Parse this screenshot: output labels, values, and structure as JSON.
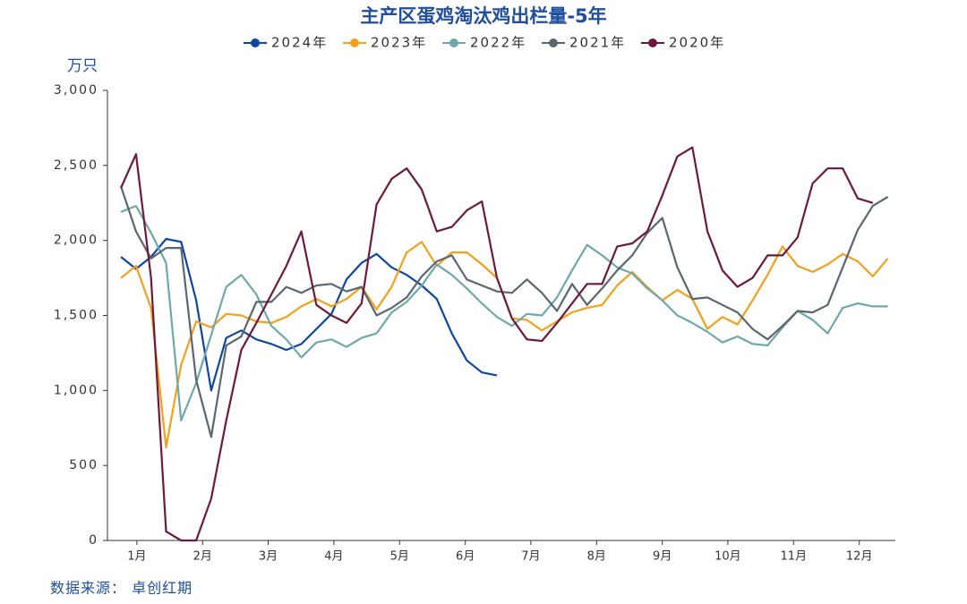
{
  "chart_data": {
    "type": "line",
    "title": "主产区蛋鸡淘汰鸡出栏量-5年",
    "y_label": "万只",
    "source": "数据来源： 卓创红期",
    "x": [
      1,
      2,
      3,
      4,
      5,
      6,
      7,
      8,
      9,
      10,
      11,
      12,
      13,
      14,
      15,
      16,
      17,
      18,
      19,
      20,
      21,
      22,
      23,
      24,
      25,
      26,
      27,
      28,
      29,
      30,
      31,
      32,
      33,
      34,
      35,
      36,
      37,
      38,
      39,
      40,
      41,
      42,
      43,
      44,
      45,
      46,
      47,
      48,
      49,
      50,
      51,
      52
    ],
    "xlim": [
      0.1,
      52.5
    ],
    "xticks": [
      {
        "value": 2.06,
        "label": "1月"
      },
      {
        "value": 6.43,
        "label": "2月"
      },
      {
        "value": 10.79,
        "label": "3月"
      },
      {
        "value": 15.16,
        "label": "4月"
      },
      {
        "value": 19.53,
        "label": "5月"
      },
      {
        "value": 23.9,
        "label": "6月"
      },
      {
        "value": 28.26,
        "label": "7月"
      },
      {
        "value": 32.63,
        "label": "8月"
      },
      {
        "value": 37,
        "label": "9月"
      },
      {
        "value": 41.36,
        "label": "10月"
      },
      {
        "value": 45.73,
        "label": "11月"
      },
      {
        "value": 50.1,
        "label": "12月"
      }
    ],
    "ylim": [
      0,
      3000
    ],
    "yticks": [
      0,
      500,
      {
        "value": 1000,
        "label": "1,000"
      },
      {
        "value": 1500,
        "label": "1,500"
      },
      {
        "value": 2000,
        "label": "2,000"
      },
      {
        "value": 2500,
        "label": "2,500"
      },
      {
        "value": 3000,
        "label": "3,000"
      }
    ],
    "series": [
      {
        "name": "2024年",
        "color": "#0d47a1",
        "values": [
          1890,
          1810,
          1890,
          2010,
          1990,
          1600,
          1000,
          1350,
          1400,
          1340,
          1310,
          1270,
          1310,
          1410,
          1510,
          1740,
          1850,
          1910,
          1820,
          1770,
          1700,
          1610,
          1380,
          1200,
          1120,
          1100,
          null,
          null,
          null,
          null,
          null,
          null,
          null,
          null,
          null,
          null,
          null,
          null,
          null,
          null,
          null,
          null,
          null,
          null,
          null,
          null,
          null,
          null,
          null,
          null,
          null,
          null
        ]
      },
      {
        "name": "2023年",
        "color": "#f5a01a",
        "values": [
          1750,
          1830,
          1550,
          620,
          1170,
          1460,
          1420,
          1510,
          1500,
          1460,
          1450,
          1490,
          1560,
          1610,
          1560,
          1610,
          1690,
          1540,
          1690,
          1920,
          1990,
          1830,
          1920,
          1920,
          1840,
          1750,
          1480,
          1470,
          1400,
          1460,
          1520,
          1550,
          1570,
          1700,
          1790,
          1690,
          1600,
          1670,
          1610,
          1410,
          1490,
          1440,
          1600,
          1770,
          1960,
          1830,
          1790,
          1840,
          1910,
          1860,
          1760,
          1880
        ]
      },
      {
        "name": "2022年",
        "color": "#6fa8aa",
        "values": [
          2190,
          2230,
          2050,
          1850,
          800,
          1050,
          1370,
          1690,
          1770,
          1640,
          1430,
          1340,
          1220,
          1320,
          1340,
          1290,
          1350,
          1380,
          1520,
          1590,
          1700,
          1840,
          1770,
          1680,
          1580,
          1490,
          1430,
          1510,
          1500,
          1620,
          1800,
          1970,
          1900,
          1820,
          1780,
          1680,
          1600,
          1500,
          1450,
          1390,
          1320,
          1360,
          1310,
          1300,
          1420,
          1530,
          1470,
          1380,
          1550,
          1580,
          1560,
          1560
        ]
      },
      {
        "name": "2021年",
        "color": "#5a6670",
        "values": [
          2360,
          2060,
          1880,
          1950,
          1950,
          1070,
          690,
          1300,
          1360,
          1590,
          1590,
          1690,
          1650,
          1700,
          1710,
          1660,
          1690,
          1500,
          1550,
          1620,
          1760,
          1860,
          1900,
          1740,
          1700,
          1660,
          1650,
          1740,
          1650,
          1530,
          1710,
          1570,
          1680,
          1800,
          1900,
          2050,
          2150,
          1820,
          1610,
          1620,
          1570,
          1520,
          1410,
          1340,
          1430,
          1530,
          1520,
          1570,
          1820,
          2070,
          2230,
          2290
        ]
      },
      {
        "name": "2020年",
        "color": "#6b1a3e",
        "values": [
          2350,
          2575,
          1750,
          60,
          0,
          0,
          280,
          800,
          1270,
          1450,
          1640,
          1830,
          2060,
          1570,
          1500,
          1450,
          1580,
          2240,
          2410,
          2480,
          2340,
          2060,
          2090,
          2200,
          2260,
          1750,
          1480,
          1340,
          1330,
          1450,
          1580,
          1710,
          1710,
          1960,
          1980,
          2060,
          2300,
          2560,
          2620,
          2060,
          1800,
          1690,
          1750,
          1900,
          1900,
          2020,
          2380,
          2480,
          2480,
          2280,
          2250,
          null
        ]
      }
    ]
  }
}
